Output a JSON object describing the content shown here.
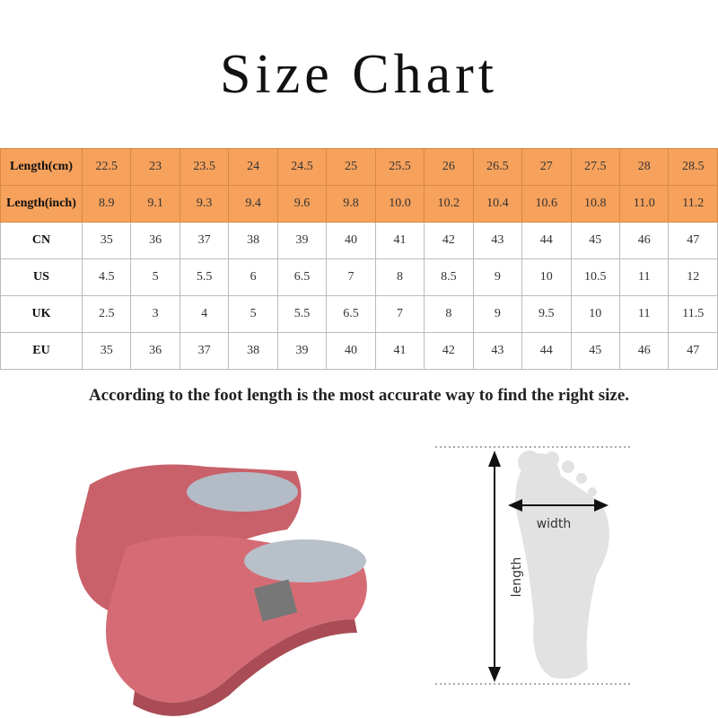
{
  "title": "Size Chart",
  "table": {
    "rows": [
      [
        "Length(cm)",
        "22.5",
        "23",
        "23.5",
        "24",
        "24.5",
        "25",
        "25.5",
        "26",
        "26.5",
        "27",
        "27.5",
        "28",
        "28.5"
      ],
      [
        "Length(inch)",
        "8.9",
        "9.1",
        "9.3",
        "9.4",
        "9.6",
        "9.8",
        "10.0",
        "10.2",
        "10.4",
        "10.6",
        "10.8",
        "11.0",
        "11.2"
      ],
      [
        "CN",
        "35",
        "36",
        "37",
        "38",
        "39",
        "40",
        "41",
        "42",
        "43",
        "44",
        "45",
        "46",
        "47"
      ],
      [
        "US",
        "4.5",
        "5",
        "5.5",
        "6",
        "6.5",
        "7",
        "8",
        "8.5",
        "9",
        "10",
        "10.5",
        "11",
        "12"
      ],
      [
        "UK",
        "2.5",
        "3",
        "4",
        "5",
        "5.5",
        "6.5",
        "7",
        "8",
        "9",
        "9.5",
        "10",
        "11",
        "11.5"
      ],
      [
        "EU",
        "35",
        "36",
        "37",
        "38",
        "39",
        "40",
        "41",
        "42",
        "43",
        "44",
        "45",
        "46",
        "47"
      ]
    ]
  },
  "note": "According to the foot length is the most  accurate way to find the right size.",
  "diagram": {
    "width_label": "width",
    "length_label": "length"
  }
}
